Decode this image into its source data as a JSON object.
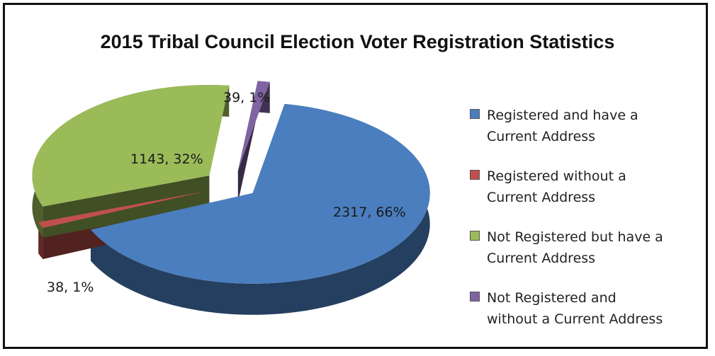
{
  "chart_data": {
    "type": "pie",
    "title": "2015 Tribal Council Election Voter Registration Statistics",
    "legend_position": "right",
    "slices": [
      {
        "name": "Registered and have a\nCurrent Address",
        "value": 2317,
        "percent": 66,
        "label": "2317, 66%",
        "color": "#4a7ebf"
      },
      {
        "name": "Registered without a\nCurrent Address",
        "value": 38,
        "percent": 1,
        "label": "38, 1%",
        "color": "#c0504d"
      },
      {
        "name": "Not Registered but have a\nCurrent Address",
        "value": 1143,
        "percent": 32,
        "label": "1143, 32%",
        "color": "#9bbb59"
      },
      {
        "name": "Not Registered and\nwithout a Current Address",
        "value": 39,
        "percent": 1,
        "label": "39, 1%",
        "color": "#8064a2"
      }
    ]
  }
}
